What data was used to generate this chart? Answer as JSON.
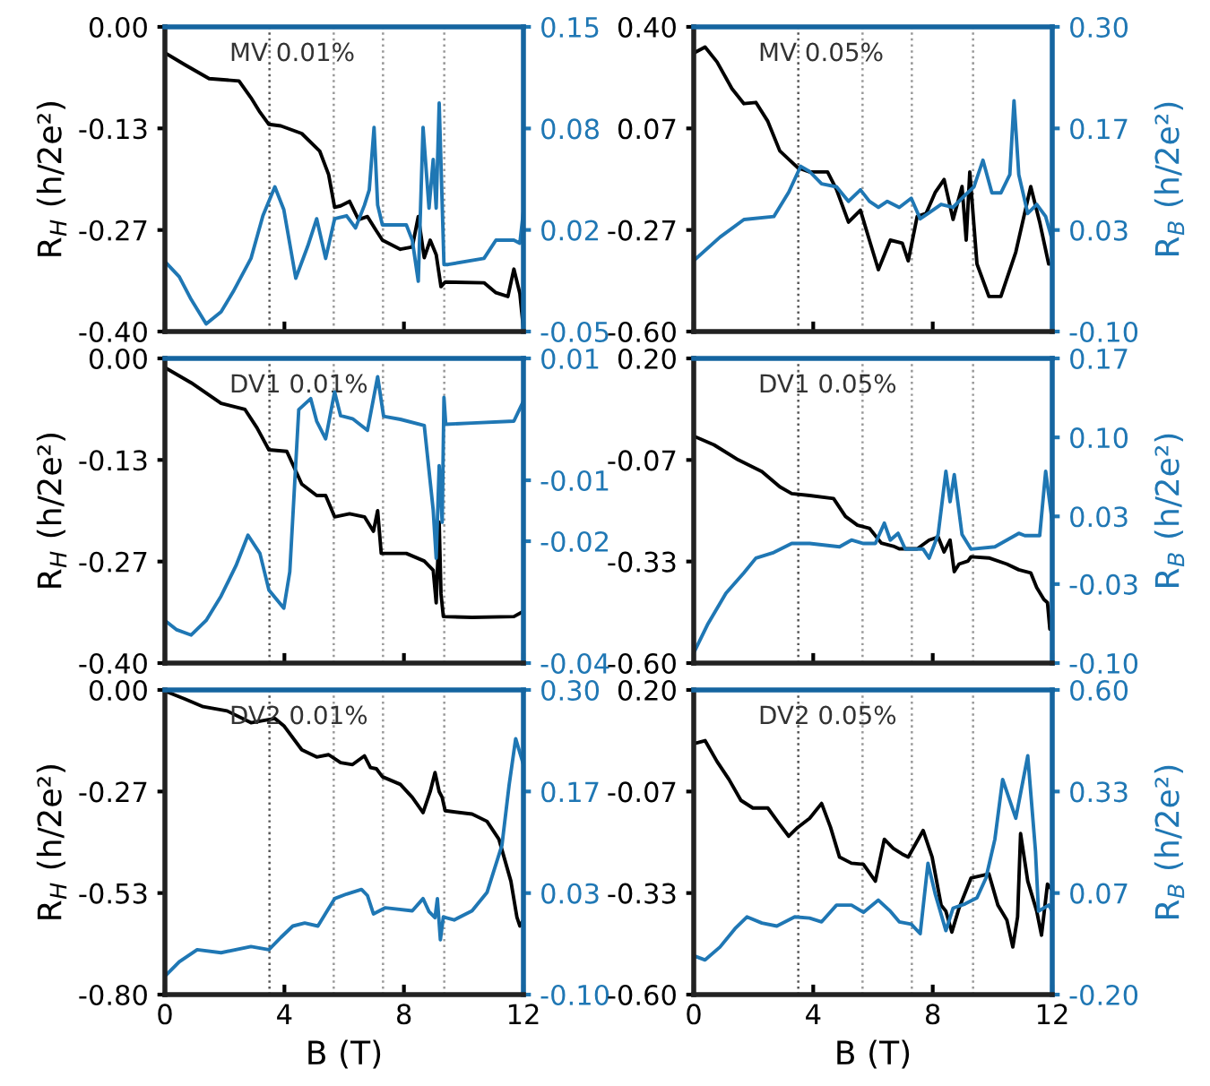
{
  "chart_data": [
    {
      "type": "line",
      "title": "MV 0.01%",
      "ylabel": "R$_{H}$ (h/2e²)",
      "tick_labels": "y",
      "xlim": [
        0,
        12
      ],
      "xticks": [
        0,
        4,
        8,
        12
      ],
      "ylim": [
        -0.4,
        0.0
      ],
      "yticks": [
        {
          "value": -0.4,
          "label": "-0.40"
        },
        {
          "value": -0.2667,
          "label": "-0.27"
        },
        {
          "value": -0.1333,
          "label": "-0.13"
        },
        {
          "value": 0.0,
          "label": "0.00"
        }
      ],
      "y2lim": [
        -0.05,
        0.15
      ],
      "y2ticks": [
        {
          "value": -0.05,
          "label": "-0.05"
        },
        {
          "value": 0.0167,
          "label": "0.02"
        },
        {
          "value": 0.0833,
          "label": "0.08"
        },
        {
          "value": 0.15,
          "label": "0.15"
        }
      ],
      "ref_lines": [
        {
          "axis": "x",
          "value": 3.5,
          "color": "#555555",
          "line_style": "dotted"
        },
        {
          "axis": "x",
          "value": 5.65,
          "color": "#999999",
          "line_style": "dotted"
        },
        {
          "axis": "x",
          "value": 7.3,
          "color": "#999999",
          "line_style": "dotted"
        },
        {
          "axis": "x",
          "value": 9.35,
          "color": "#999999",
          "line_style": "dotted"
        }
      ],
      "series": [
        {
          "color": "#000000",
          "x": [
            0,
            0.68,
            1.48,
            2.48,
            2.88,
            3.18,
            3.48,
            3.88,
            4.58,
            5.18,
            5.48,
            5.68,
            5.88,
            6.18,
            6.48,
            6.78,
            7.08,
            7.28,
            7.88,
            8.28,
            8.48,
            8.68,
            8.88,
            9.08,
            9.24,
            9.38,
            10.68,
            11.08,
            11.48,
            11.68,
            11.88,
            12.0
          ],
          "values": [
            -0.034,
            -0.05,
            -0.068,
            -0.071,
            -0.093,
            -0.112,
            -0.128,
            -0.13,
            -0.14,
            -0.163,
            -0.194,
            -0.237,
            -0.235,
            -0.229,
            -0.253,
            -0.249,
            -0.268,
            -0.28,
            -0.292,
            -0.289,
            -0.249,
            -0.303,
            -0.28,
            -0.299,
            -0.341,
            -0.335,
            -0.336,
            -0.349,
            -0.354,
            -0.318,
            -0.35,
            -0.397
          ]
        },
        {
          "color": "#1f77b4",
          "axis": "y2",
          "x": [
            0,
            0.48,
            0.88,
            1.38,
            1.88,
            2.28,
            2.88,
            3.28,
            3.68,
            3.98,
            4.38,
            4.78,
            5.08,
            5.38,
            5.68,
            6.08,
            6.38,
            6.68,
            6.84,
            7.0,
            7.12,
            7.28,
            8.08,
            8.28,
            8.48,
            8.64,
            8.84,
            8.98,
            9.08,
            9.18,
            9.34,
            9.48,
            10.68,
            11.08,
            11.68,
            11.88,
            12.0
          ],
          "values": [
            -0.004,
            -0.014,
            -0.029,
            -0.045,
            -0.037,
            -0.024,
            -0.002,
            0.026,
            0.045,
            0.03,
            -0.015,
            0.006,
            0.024,
            -0.002,
            0.024,
            0.026,
            0.018,
            0.033,
            0.043,
            0.084,
            0.033,
            0.02,
            0.02,
            0.01,
            -0.017,
            0.084,
            0.031,
            0.063,
            0.031,
            0.1,
            -0.006,
            -0.006,
            -0.002,
            0.01,
            0.01,
            0.008,
            0.029
          ]
        }
      ]
    },
    {
      "type": "line",
      "title": "MV 0.05%",
      "y2label": "R$_{B}$ (h/2e²)",
      "tick_labels": "y",
      "xlim": [
        0,
        12
      ],
      "xticks": [
        0,
        4,
        8,
        12
      ],
      "ylim": [
        -0.6,
        0.4
      ],
      "yticks": [
        {
          "value": -0.6,
          "label": "-0.60"
        },
        {
          "value": -0.2667,
          "label": "-0.27"
        },
        {
          "value": 0.0667,
          "label": "0.07"
        },
        {
          "value": 0.4,
          "label": "0.40"
        }
      ],
      "y2lim": [
        -0.1,
        0.3
      ],
      "y2ticks": [
        {
          "value": -0.1,
          "label": "-0.10"
        },
        {
          "value": 0.0333,
          "label": "0.03"
        },
        {
          "value": 0.1667,
          "label": "0.17"
        },
        {
          "value": 0.3,
          "label": "0.30"
        }
      ],
      "ref_lines": [
        {
          "axis": "x",
          "value": 3.5,
          "color": "#555555",
          "line_style": "dotted"
        },
        {
          "axis": "x",
          "value": 5.65,
          "color": "#999999",
          "line_style": "dotted"
        },
        {
          "axis": "x",
          "value": 7.3,
          "color": "#999999",
          "line_style": "dotted"
        },
        {
          "axis": "x",
          "value": 9.35,
          "color": "#999999",
          "line_style": "dotted"
        }
      ],
      "series": [
        {
          "color": "#000000",
          "x": [
            0,
            0.38,
            0.78,
            1.28,
            1.68,
            2.08,
            2.48,
            2.88,
            3.48,
            3.88,
            4.48,
            4.78,
            5.18,
            5.58,
            5.88,
            6.18,
            6.58,
            6.98,
            7.18,
            7.48,
            7.78,
            8.08,
            8.38,
            8.68,
            8.98,
            9.12,
            9.24,
            9.48,
            9.88,
            10.28,
            10.78,
            11.28,
            11.58,
            11.88,
            12.0
          ],
          "values": [
            0.314,
            0.334,
            0.285,
            0.197,
            0.148,
            0.152,
            0.09,
            -0.007,
            -0.062,
            -0.076,
            -0.076,
            -0.134,
            -0.241,
            -0.202,
            -0.3,
            -0.397,
            -0.3,
            -0.31,
            -0.368,
            -0.222,
            -0.212,
            -0.144,
            -0.101,
            -0.232,
            -0.124,
            -0.3,
            -0.076,
            -0.378,
            -0.485,
            -0.485,
            -0.339,
            -0.124,
            -0.241,
            -0.378,
            -0.378
          ]
        },
        {
          "color": "#1f77b4",
          "axis": "y2",
          "x": [
            0,
            0.88,
            1.68,
            2.68,
            3.18,
            3.58,
            3.88,
            4.28,
            4.78,
            5.18,
            5.58,
            5.88,
            6.18,
            6.48,
            6.88,
            7.28,
            7.58,
            7.88,
            8.28,
            8.68,
            9.08,
            9.38,
            9.68,
            9.98,
            10.28,
            10.58,
            10.72,
            10.88,
            11.18,
            11.48,
            11.78,
            12.0
          ],
          "values": [
            -0.007,
            0.024,
            0.047,
            0.051,
            0.083,
            0.117,
            0.11,
            0.094,
            0.09,
            0.071,
            0.086,
            0.071,
            0.063,
            0.071,
            0.063,
            0.075,
            0.048,
            0.056,
            0.067,
            0.063,
            0.079,
            0.09,
            0.125,
            0.082,
            0.082,
            0.106,
            0.203,
            0.106,
            0.055,
            0.067,
            0.051,
            0.02
          ]
        }
      ]
    },
    {
      "type": "line",
      "title": "DV1 0.01%",
      "ylabel": "R$_{H}$ (h/2e²)",
      "tick_labels": "y",
      "xlim": [
        0,
        12
      ],
      "xticks": [
        0,
        4,
        8,
        12
      ],
      "ylim": [
        -0.4,
        0.0
      ],
      "yticks": [
        {
          "value": -0.4,
          "label": "-0.40"
        },
        {
          "value": -0.2667,
          "label": "-0.27"
        },
        {
          "value": -0.1333,
          "label": "-0.13"
        },
        {
          "value": 0.0,
          "label": "0.00"
        }
      ],
      "y2lim": [
        -0.04,
        0.01
      ],
      "y2ticks": [
        -0.04,
        -0.02,
        -0.01,
        0.01
      ],
      "ref_lines": [
        {
          "axis": "x",
          "value": 3.5,
          "color": "#555555",
          "line_style": "dotted"
        },
        {
          "axis": "x",
          "value": 5.65,
          "color": "#999999",
          "line_style": "dotted"
        },
        {
          "axis": "x",
          "value": 7.3,
          "color": "#999999",
          "line_style": "dotted"
        },
        {
          "axis": "x",
          "value": 9.35,
          "color": "#999999",
          "line_style": "dotted"
        }
      ],
      "series": [
        {
          "color": "#000000",
          "x": [
            0,
            0.88,
            1.88,
            2.68,
            3.08,
            3.48,
            4.08,
            4.58,
            5.08,
            5.38,
            5.68,
            6.18,
            6.68,
            6.98,
            7.12,
            7.24,
            8.08,
            8.68,
            8.98,
            9.08,
            9.18,
            9.24,
            9.32,
            10.28,
            11.68,
            12.0
          ],
          "values": [
            -0.012,
            -0.032,
            -0.059,
            -0.067,
            -0.091,
            -0.12,
            -0.122,
            -0.165,
            -0.18,
            -0.18,
            -0.208,
            -0.204,
            -0.208,
            -0.227,
            -0.2,
            -0.256,
            -0.256,
            -0.266,
            -0.278,
            -0.321,
            -0.215,
            -0.309,
            -0.339,
            -0.34,
            -0.339,
            -0.332
          ]
        },
        {
          "color": "#1f77b4",
          "axis": "y2",
          "x": [
            0,
            0.38,
            0.88,
            1.38,
            1.88,
            2.38,
            2.78,
            3.18,
            3.48,
            3.98,
            4.18,
            4.48,
            4.88,
            5.08,
            5.38,
            5.68,
            5.88,
            6.28,
            6.78,
            7.12,
            7.32,
            7.88,
            8.68,
            8.98,
            9.08,
            9.18,
            9.28,
            9.34,
            9.4,
            10.28,
            11.68,
            12.0
          ],
          "values": [
            -0.033,
            -0.0345,
            -0.0354,
            -0.033,
            -0.029,
            -0.024,
            -0.019,
            -0.022,
            -0.028,
            -0.031,
            -0.025,
            0.0016,
            0.0034,
            -0.0003,
            -0.0032,
            0.0045,
            0.0006,
            0.0001,
            -0.0018,
            0.007,
            0.0005,
            0.0,
            -0.001,
            -0.0149,
            -0.0228,
            -0.0076,
            -0.0169,
            0.0036,
            -0.0008,
            -0.0006,
            -0.0003,
            0.003
          ]
        }
      ]
    },
    {
      "type": "line",
      "title": "DV1 0.05%",
      "y2label": "R$_{B}$ (h/2e²)",
      "tick_labels": "y",
      "xlim": [
        0,
        12
      ],
      "xticks": [
        0,
        4,
        8,
        12
      ],
      "ylim": [
        -0.6,
        0.2
      ],
      "yticks": [
        {
          "value": -0.6,
          "label": "-0.60"
        },
        {
          "value": -0.3333,
          "label": "-0.33"
        },
        {
          "value": -0.0667,
          "label": "-0.07"
        },
        {
          "value": 0.2,
          "label": "0.20"
        }
      ],
      "y2lim": [
        -0.1,
        0.17
      ],
      "y2ticks": [
        {
          "value": -0.1,
          "label": "-0.10"
        },
        -0.03,
        0.03,
        {
          "value": 0.1,
          "label": "0.10"
        },
        0.17
      ],
      "ref_lines": [
        {
          "axis": "x",
          "value": 3.5,
          "color": "#555555",
          "line_style": "dotted"
        },
        {
          "axis": "x",
          "value": 5.65,
          "color": "#999999",
          "line_style": "dotted"
        },
        {
          "axis": "x",
          "value": 7.3,
          "color": "#999999",
          "line_style": "dotted"
        },
        {
          "axis": "x",
          "value": 9.35,
          "color": "#999999",
          "line_style": "dotted"
        }
      ],
      "series": [
        {
          "color": "#000000",
          "x": [
            0,
            0.68,
            1.48,
            2.28,
            2.88,
            3.28,
            3.88,
            4.68,
            5.08,
            5.48,
            5.88,
            6.28,
            6.68,
            6.88,
            7.48,
            7.88,
            8.18,
            8.38,
            8.58,
            8.72,
            8.88,
            9.18,
            9.28,
            9.88,
            10.48,
            10.88,
            11.28,
            11.48,
            11.72,
            11.84,
            11.92,
            12.0
          ],
          "values": [
            -0.004,
            -0.027,
            -0.066,
            -0.097,
            -0.137,
            -0.155,
            -0.16,
            -0.168,
            -0.215,
            -0.238,
            -0.246,
            -0.285,
            -0.293,
            -0.3,
            -0.3,
            -0.277,
            -0.269,
            -0.308,
            -0.277,
            -0.36,
            -0.34,
            -0.332,
            -0.321,
            -0.324,
            -0.34,
            -0.355,
            -0.363,
            -0.402,
            -0.433,
            -0.441,
            -0.511,
            -0.495
          ]
        },
        {
          "color": "#1f77b4",
          "axis": "y2",
          "x": [
            0,
            0.48,
            1.08,
            1.68,
            2.08,
            2.68,
            3.28,
            3.88,
            4.88,
            5.28,
            5.68,
            6.08,
            6.38,
            6.58,
            6.84,
            7.08,
            7.68,
            7.88,
            8.18,
            8.44,
            8.58,
            8.72,
            8.98,
            9.28,
            10.08,
            10.48,
            10.88,
            11.08,
            11.58,
            11.78,
            12.0
          ],
          "values": [
            -0.091,
            -0.065,
            -0.038,
            -0.02,
            -0.007,
            -0.002,
            0.006,
            0.006,
            0.003,
            0.009,
            0.006,
            0.006,
            0.024,
            0.009,
            0.015,
            0.001,
            0.001,
            -0.007,
            0.014,
            0.07,
            0.043,
            0.067,
            0.014,
            0.001,
            0.003,
            0.009,
            0.015,
            0.013,
            0.013,
            0.07,
            0.025
          ]
        }
      ]
    },
    {
      "type": "line",
      "title": "DV2 0.01%",
      "xlabel": "B (T)",
      "ylabel": "R$_{H}$ (h/2e²)",
      "xlim": [
        0,
        12
      ],
      "xticks": [
        0,
        4,
        8,
        12
      ],
      "ylim": [
        -0.8,
        0.0
      ],
      "yticks": [
        {
          "value": -0.8,
          "label": "-0.80"
        },
        {
          "value": -0.5333,
          "label": "-0.53"
        },
        {
          "value": -0.2667,
          "label": "-0.27"
        },
        {
          "value": 0.0,
          "label": "0.00"
        }
      ],
      "y2lim": [
        -0.1,
        0.3
      ],
      "y2ticks": [
        {
          "value": -0.1,
          "label": "-0.10"
        },
        {
          "value": 0.0333,
          "label": "0.03"
        },
        {
          "value": 0.1667,
          "label": "0.17"
        },
        {
          "value": 0.3,
          "label": "0.30"
        }
      ],
      "ref_lines": [
        {
          "axis": "x",
          "value": 3.5,
          "color": "#555555",
          "line_style": "dotted"
        },
        {
          "axis": "x",
          "value": 5.65,
          "color": "#999999",
          "line_style": "dotted"
        },
        {
          "axis": "x",
          "value": 7.3,
          "color": "#999999",
          "line_style": "dotted"
        },
        {
          "axis": "x",
          "value": 9.35,
          "color": "#999999",
          "line_style": "dotted"
        }
      ],
      "series": [
        {
          "color": "#000000",
          "x": [
            0,
            0.68,
            1.28,
            2.08,
            2.88,
            3.68,
            3.98,
            4.58,
            5.08,
            5.48,
            5.88,
            6.28,
            6.68,
            6.88,
            7.08,
            7.28,
            7.88,
            8.28,
            8.64,
            8.88,
            9.04,
            9.18,
            9.28,
            9.38,
            10.28,
            10.78,
            11.18,
            11.58,
            11.78,
            11.88,
            12.0
          ],
          "values": [
            -0.003,
            -0.024,
            -0.044,
            -0.055,
            -0.086,
            -0.075,
            -0.094,
            -0.157,
            -0.176,
            -0.17,
            -0.191,
            -0.196,
            -0.173,
            -0.204,
            -0.207,
            -0.228,
            -0.248,
            -0.282,
            -0.322,
            -0.267,
            -0.217,
            -0.267,
            -0.282,
            -0.317,
            -0.326,
            -0.345,
            -0.392,
            -0.502,
            -0.596,
            -0.62,
            -0.604
          ]
        },
        {
          "color": "#1f77b4",
          "axis": "y2",
          "x": [
            0,
            0.48,
            1.08,
            1.88,
            2.88,
            3.48,
            3.88,
            4.28,
            4.68,
            5.12,
            5.68,
            6.08,
            6.58,
            6.78,
            6.98,
            7.38,
            8.28,
            8.64,
            8.84,
            9.04,
            9.12,
            9.22,
            9.32,
            9.68,
            10.28,
            10.78,
            11.28,
            11.52,
            11.74,
            12.0
          ],
          "values": [
            -0.076,
            -0.057,
            -0.041,
            -0.045,
            -0.037,
            -0.041,
            -0.025,
            -0.01,
            -0.006,
            -0.01,
            0.026,
            0.032,
            0.038,
            0.03,
            0.006,
            0.014,
            0.01,
            0.026,
            0.009,
            0.001,
            0.026,
            -0.028,
            0.002,
            -0.002,
            0.01,
            0.034,
            0.096,
            0.175,
            0.236,
            0.202
          ]
        }
      ]
    },
    {
      "type": "line",
      "title": "DV2 0.05%",
      "xlabel": "B (T)",
      "y2label": "R$_{B}$ (h/2e²)",
      "xlim": [
        0,
        12
      ],
      "xticks": [
        0,
        4,
        8,
        12
      ],
      "ylim": [
        -0.6,
        0.2
      ],
      "yticks": [
        {
          "value": -0.6,
          "label": "-0.60"
        },
        {
          "value": -0.3333,
          "label": "-0.33"
        },
        {
          "value": -0.0667,
          "label": "-0.07"
        },
        {
          "value": 0.2,
          "label": "0.20"
        }
      ],
      "y2lim": [
        -0.2,
        0.6
      ],
      "y2ticks": [
        {
          "value": -0.2,
          "label": "-0.20"
        },
        {
          "value": 0.0667,
          "label": "0.07"
        },
        {
          "value": 0.3333,
          "label": "0.33"
        },
        {
          "value": 0.6,
          "label": "0.60"
        }
      ],
      "ref_lines": [
        {
          "axis": "x",
          "value": 3.5,
          "color": "#555555",
          "line_style": "dotted"
        },
        {
          "axis": "x",
          "value": 5.65,
          "color": "#999999",
          "line_style": "dotted"
        },
        {
          "axis": "x",
          "value": 7.3,
          "color": "#999999",
          "line_style": "dotted"
        },
        {
          "axis": "x",
          "value": 9.35,
          "color": "#999999",
          "line_style": "dotted"
        }
      ],
      "series": [
        {
          "color": "#000000",
          "x": [
            0,
            0.38,
            0.78,
            1.18,
            1.58,
            1.98,
            2.48,
            2.88,
            3.18,
            3.48,
            3.88,
            4.28,
            4.58,
            4.88,
            5.28,
            5.68,
            6.08,
            6.38,
            6.68,
            6.98,
            7.18,
            7.68,
            7.98,
            8.28,
            8.44,
            8.64,
            8.88,
            9.28,
            9.88,
            10.18,
            10.48,
            10.68,
            10.84,
            10.94,
            11.18,
            11.48,
            11.64,
            11.84,
            12.0
          ],
          "values": [
            0.059,
            0.067,
            0.012,
            -0.035,
            -0.09,
            -0.11,
            -0.11,
            -0.153,
            -0.184,
            -0.161,
            -0.137,
            -0.098,
            -0.161,
            -0.239,
            -0.255,
            -0.258,
            -0.302,
            -0.192,
            -0.216,
            -0.231,
            -0.239,
            -0.169,
            -0.239,
            -0.365,
            -0.381,
            -0.436,
            -0.373,
            -0.294,
            -0.283,
            -0.365,
            -0.404,
            -0.475,
            -0.396,
            -0.177,
            -0.302,
            -0.381,
            -0.444,
            -0.31,
            -0.326
          ]
        },
        {
          "color": "#1f77b4",
          "axis": "y2",
          "x": [
            0,
            0.38,
            0.88,
            1.38,
            1.78,
            2.28,
            2.78,
            3.38,
            3.88,
            4.28,
            4.78,
            5.28,
            5.68,
            6.18,
            6.58,
            6.88,
            7.28,
            7.58,
            7.84,
            8.08,
            8.44,
            8.68,
            9.08,
            9.48,
            9.78,
            10.08,
            10.34,
            10.78,
            11.18,
            11.44,
            11.54,
            11.88,
            12.0
          ],
          "values": [
            -0.098,
            -0.109,
            -0.075,
            -0.027,
            0.004,
            -0.012,
            -0.02,
            0.004,
            0.001,
            -0.009,
            0.035,
            0.035,
            0.016,
            0.048,
            0.019,
            -0.009,
            -0.015,
            -0.04,
            0.145,
            0.065,
            -0.032,
            0.027,
            0.038,
            0.054,
            0.106,
            0.208,
            0.365,
            0.263,
            0.427,
            0.176,
            0.019,
            0.035,
            0.019
          ]
        }
      ]
    }
  ]
}
